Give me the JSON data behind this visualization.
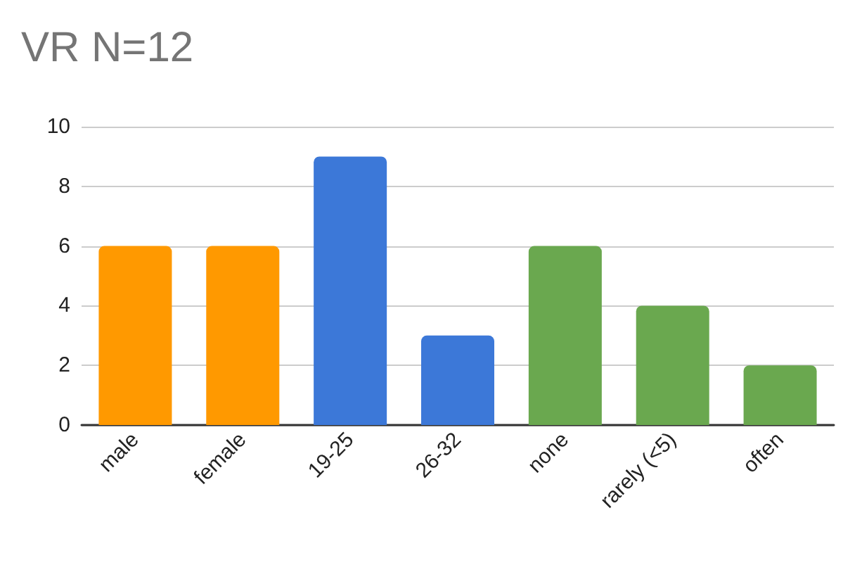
{
  "chart_data": {
    "type": "bar",
    "title": "VR N=12",
    "categories": [
      "male",
      "female",
      "19-25",
      "26-32",
      "none",
      "rarely (<5)",
      "often"
    ],
    "values": [
      6,
      6,
      9,
      3,
      6,
      4,
      2
    ],
    "colors": [
      "#ff9900",
      "#ff9900",
      "#3c78d8",
      "#3c78d8",
      "#6aa84f",
      "#6aa84f",
      "#6aa84f"
    ],
    "ylim": [
      0,
      10
    ],
    "yticks": [
      0,
      2,
      4,
      6,
      8,
      10
    ],
    "grid": "y"
  }
}
